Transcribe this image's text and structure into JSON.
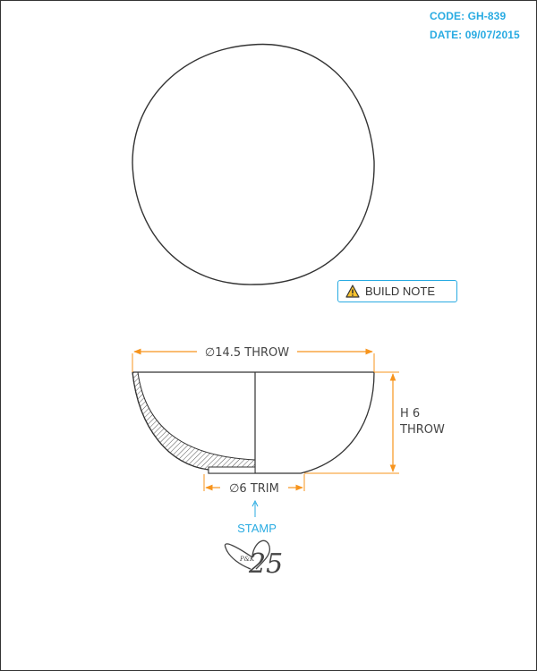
{
  "header": {
    "code": "CODE: GH-839",
    "date": "DATE: 09/07/2015"
  },
  "build_note": {
    "label": "BUILD NOTE",
    "icon": "warning-icon"
  },
  "dimensions": {
    "throw_diameter": "∅14.5 THROW",
    "height_line1": "H 6",
    "height_line2": "THROW",
    "trim_diameter": "∅6 TRIM"
  },
  "stamp": {
    "label": "STAMP",
    "mark_initials": "P&K",
    "mark_number": "25"
  },
  "colors": {
    "accent": "#29abe2",
    "dimension": "#f7941d",
    "line": "#333333"
  }
}
